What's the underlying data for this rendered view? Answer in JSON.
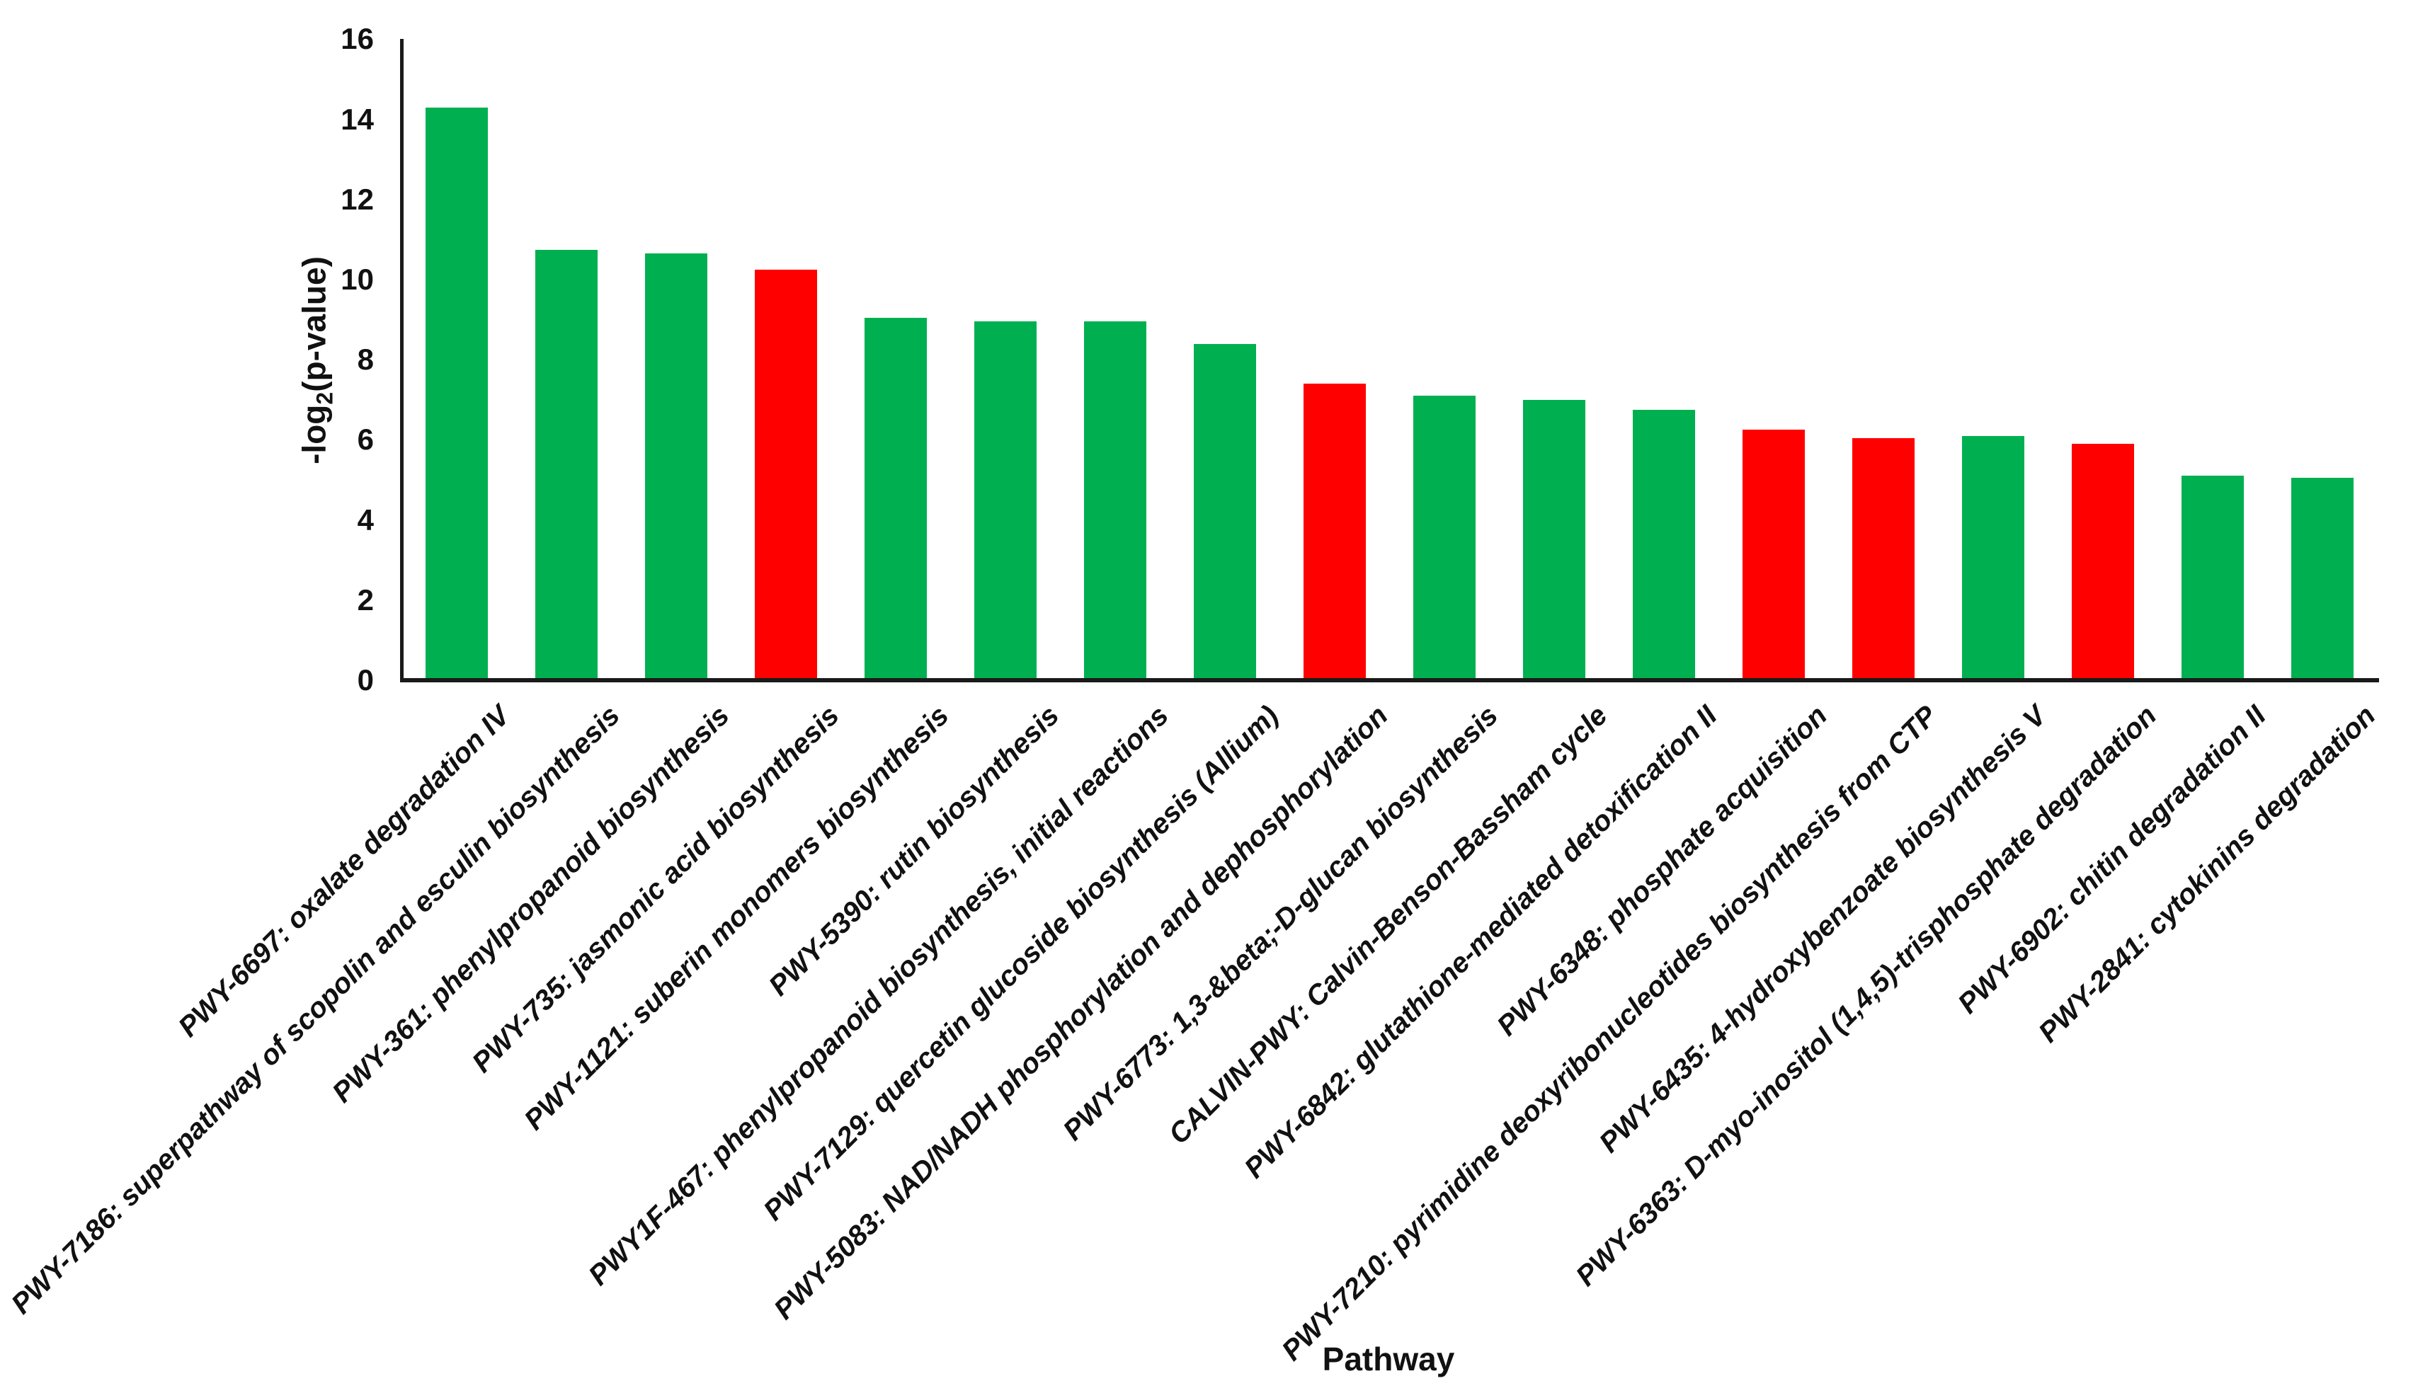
{
  "chart": {
    "xlabel": "Pathway",
    "ylabel_prefix": "-log",
    "ylabel_sub": "2",
    "ylabel_suffix": "(p-value)"
  },
  "chart_data": {
    "type": "bar",
    "title": "",
    "xlabel": "Pathway",
    "ylabel": "-log2(p-value)",
    "ylim": [
      0,
      16
    ],
    "yticks": [
      0,
      2,
      4,
      6,
      8,
      10,
      12,
      14,
      16
    ],
    "grid": false,
    "legend_position": "none",
    "palette": {
      "green": "#00B050",
      "red": "#FF0000"
    },
    "categories": [
      "PWY-6697: oxalate degradation IV",
      "PWY-7186: superpathway of scopolin and esculin biosynthesis",
      "PWY-361: phenylpropanoid biosynthesis",
      "PWY-735: jasmonic acid biosynthesis",
      "PWY-1121: suberin monomers biosynthesis",
      "PWY-5390: rutin biosynthesis",
      "PWY1F-467: phenylpropanoid biosynthesis, initial reactions",
      "PWY-7129: quercetin glucoside biosynthesis (Allium)",
      "PWY-5083: NAD/NADH phosphorylation and dephosphorylation",
      "PWY-6773: 1,3-&beta;-D-glucan biosynthesis",
      "CALVIN-PWY: Calvin-Benson-Bassham cycle",
      "PWY-6842: glutathione-mediated detoxification II",
      "PWY-6348: phosphate acquisition",
      "PWY-7210: pyrimidine deoxyribonucleotides biosynthesis from CTP",
      "PWY-6435: 4-hydroxybenzoate biosynthesis V",
      "PWY-6363: D-myo-inositol (1,4,5)-trisphosphate degradation",
      "PWY-6902: chitin degradation II",
      "PWY-2841: cytokinins degradation"
    ],
    "values": [
      14.3,
      10.75,
      10.65,
      10.25,
      9.05,
      8.95,
      8.95,
      8.4,
      7.4,
      7.1,
      7.0,
      6.75,
      6.25,
      6.05,
      6.1,
      5.9,
      5.1,
      5.05
    ],
    "bar_colors": [
      "#00B050",
      "#00B050",
      "#00B050",
      "#FF0000",
      "#00B050",
      "#00B050",
      "#00B050",
      "#00B050",
      "#FF0000",
      "#00B050",
      "#00B050",
      "#00B050",
      "#FF0000",
      "#FF0000",
      "#00B050",
      "#FF0000",
      "#00B050",
      "#00B050"
    ]
  }
}
